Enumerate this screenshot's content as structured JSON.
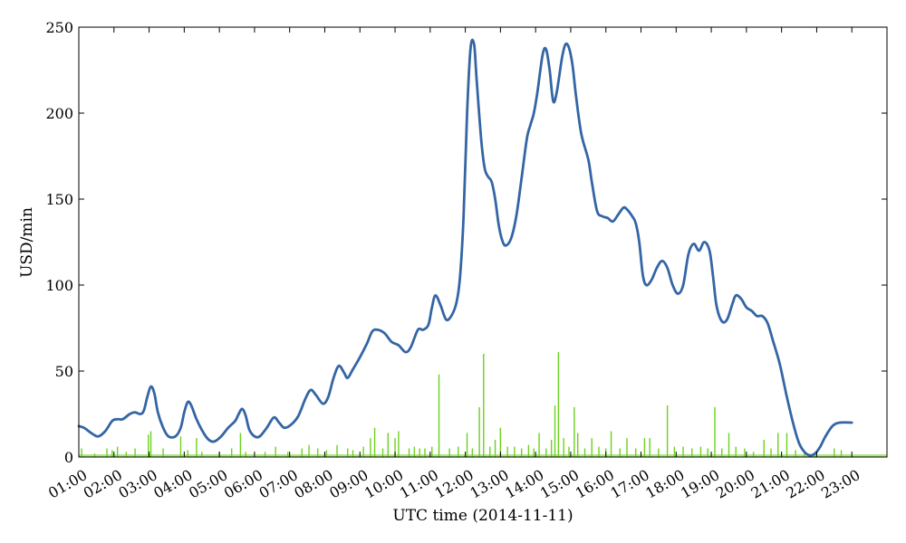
{
  "chart_data": {
    "type": "line",
    "xlabel": "UTC time (2014-11-11)",
    "ylabel": "USD/min",
    "ylim": [
      0,
      250
    ],
    "yticks": [
      0,
      50,
      100,
      150,
      200,
      250
    ],
    "xticks": [
      "01:00",
      "02:00",
      "03:00",
      "04:00",
      "05:00",
      "06:00",
      "07:00",
      "08:00",
      "09:00",
      "10:00",
      "11:00",
      "12:00",
      "13:00",
      "14:00",
      "15:00",
      "16:00",
      "17:00",
      "18:00",
      "19:00",
      "20:00",
      "21:00",
      "22:00",
      "23:00"
    ],
    "xlim_hours": [
      1.0,
      24.0
    ],
    "grid": false,
    "series": [
      {
        "style": "smooth-line",
        "color": "#3465a4",
        "points": [
          [
            1.0,
            18
          ],
          [
            1.15,
            17
          ],
          [
            1.35,
            14
          ],
          [
            1.55,
            12
          ],
          [
            1.75,
            15
          ],
          [
            1.95,
            21
          ],
          [
            2.1,
            22
          ],
          [
            2.25,
            22
          ],
          [
            2.45,
            25
          ],
          [
            2.6,
            26
          ],
          [
            2.75,
            25
          ],
          [
            2.85,
            27
          ],
          [
            2.95,
            35
          ],
          [
            3.05,
            41
          ],
          [
            3.15,
            37
          ],
          [
            3.25,
            26
          ],
          [
            3.4,
            17
          ],
          [
            3.55,
            12
          ],
          [
            3.75,
            12
          ],
          [
            3.9,
            17
          ],
          [
            4.0,
            26
          ],
          [
            4.1,
            32
          ],
          [
            4.2,
            30
          ],
          [
            4.35,
            22
          ],
          [
            4.55,
            14
          ],
          [
            4.7,
            10
          ],
          [
            4.85,
            9
          ],
          [
            5.05,
            12
          ],
          [
            5.25,
            17
          ],
          [
            5.45,
            21
          ],
          [
            5.55,
            25
          ],
          [
            5.65,
            28
          ],
          [
            5.75,
            24
          ],
          [
            5.85,
            16
          ],
          [
            6.0,
            12
          ],
          [
            6.15,
            12
          ],
          [
            6.35,
            17
          ],
          [
            6.55,
            23
          ],
          [
            6.7,
            20
          ],
          [
            6.85,
            17
          ],
          [
            7.05,
            19
          ],
          [
            7.25,
            24
          ],
          [
            7.45,
            34
          ],
          [
            7.6,
            39
          ],
          [
            7.75,
            36
          ],
          [
            7.95,
            31
          ],
          [
            8.1,
            35
          ],
          [
            8.25,
            46
          ],
          [
            8.4,
            53
          ],
          [
            8.55,
            49
          ],
          [
            8.65,
            46
          ],
          [
            8.8,
            51
          ],
          [
            9.0,
            58
          ],
          [
            9.2,
            66
          ],
          [
            9.35,
            73
          ],
          [
            9.5,
            74
          ],
          [
            9.7,
            72
          ],
          [
            9.9,
            67
          ],
          [
            10.1,
            65
          ],
          [
            10.3,
            61
          ],
          [
            10.45,
            64
          ],
          [
            10.65,
            74
          ],
          [
            10.8,
            74
          ],
          [
            10.95,
            77
          ],
          [
            11.05,
            87
          ],
          [
            11.15,
            94
          ],
          [
            11.3,
            88
          ],
          [
            11.45,
            80
          ],
          [
            11.6,
            82
          ],
          [
            11.75,
            90
          ],
          [
            11.85,
            105
          ],
          [
            11.95,
            140
          ],
          [
            12.05,
            200
          ],
          [
            12.15,
            238
          ],
          [
            12.25,
            240
          ],
          [
            12.32,
            220
          ],
          [
            12.45,
            185
          ],
          [
            12.55,
            168
          ],
          [
            12.65,
            163
          ],
          [
            12.75,
            160
          ],
          [
            12.85,
            150
          ],
          [
            12.95,
            135
          ],
          [
            13.05,
            126
          ],
          [
            13.15,
            123
          ],
          [
            13.3,
            127
          ],
          [
            13.45,
            140
          ],
          [
            13.6,
            162
          ],
          [
            13.75,
            185
          ],
          [
            13.85,
            193
          ],
          [
            13.95,
            200
          ],
          [
            14.05,
            212
          ],
          [
            14.2,
            234
          ],
          [
            14.3,
            237
          ],
          [
            14.4,
            225
          ],
          [
            14.5,
            207
          ],
          [
            14.6,
            212
          ],
          [
            14.75,
            232
          ],
          [
            14.85,
            240
          ],
          [
            14.95,
            238
          ],
          [
            15.05,
            228
          ],
          [
            15.15,
            210
          ],
          [
            15.3,
            188
          ],
          [
            15.5,
            173
          ],
          [
            15.6,
            160
          ],
          [
            15.75,
            143
          ],
          [
            15.9,
            140
          ],
          [
            16.05,
            139
          ],
          [
            16.2,
            137
          ],
          [
            16.35,
            141
          ],
          [
            16.5,
            145
          ],
          [
            16.6,
            144
          ],
          [
            16.75,
            140
          ],
          [
            16.85,
            136
          ],
          [
            16.95,
            125
          ],
          [
            17.05,
            106
          ],
          [
            17.15,
            100
          ],
          [
            17.3,
            103
          ],
          [
            17.45,
            110
          ],
          [
            17.6,
            114
          ],
          [
            17.75,
            110
          ],
          [
            17.9,
            100
          ],
          [
            18.05,
            95
          ],
          [
            18.2,
            100
          ],
          [
            18.35,
            118
          ],
          [
            18.5,
            124
          ],
          [
            18.65,
            120
          ],
          [
            18.8,
            125
          ],
          [
            18.95,
            120
          ],
          [
            19.05,
            105
          ],
          [
            19.15,
            88
          ],
          [
            19.3,
            79
          ],
          [
            19.45,
            80
          ],
          [
            19.6,
            89
          ],
          [
            19.7,
            94
          ],
          [
            19.85,
            92
          ],
          [
            20.0,
            87
          ],
          [
            20.15,
            85
          ],
          [
            20.3,
            82
          ],
          [
            20.45,
            82
          ],
          [
            20.6,
            78
          ],
          [
            20.75,
            68
          ],
          [
            20.95,
            54
          ],
          [
            21.15,
            35
          ],
          [
            21.35,
            18
          ],
          [
            21.5,
            8
          ],
          [
            21.65,
            3
          ],
          [
            21.8,
            1
          ],
          [
            21.95,
            2
          ],
          [
            22.1,
            6
          ],
          [
            22.25,
            12
          ],
          [
            22.45,
            18
          ],
          [
            22.65,
            20
          ],
          [
            23.0,
            20
          ]
        ]
      },
      {
        "style": "bars",
        "color": "#6bd11f",
        "bars": [
          [
            1.08,
            5
          ],
          [
            1.45,
            2
          ],
          [
            1.8,
            5
          ],
          [
            1.95,
            4
          ],
          [
            2.1,
            6
          ],
          [
            2.35,
            3
          ],
          [
            2.6,
            5
          ],
          [
            2.98,
            13
          ],
          [
            3.05,
            15
          ],
          [
            3.4,
            5
          ],
          [
            3.9,
            12
          ],
          [
            4.1,
            4
          ],
          [
            4.35,
            11
          ],
          [
            4.5,
            3
          ],
          [
            5.0,
            3
          ],
          [
            5.35,
            5
          ],
          [
            5.6,
            14
          ],
          [
            5.75,
            3
          ],
          [
            6.3,
            3
          ],
          [
            6.6,
            6
          ],
          [
            6.95,
            3
          ],
          [
            7.35,
            5
          ],
          [
            7.55,
            7
          ],
          [
            7.8,
            5
          ],
          [
            8.05,
            4
          ],
          [
            8.35,
            7
          ],
          [
            8.65,
            5
          ],
          [
            8.8,
            4
          ],
          [
            9.1,
            6
          ],
          [
            9.3,
            11
          ],
          [
            9.42,
            17
          ],
          [
            9.65,
            5
          ],
          [
            9.8,
            14
          ],
          [
            10.0,
            11
          ],
          [
            10.1,
            15
          ],
          [
            10.4,
            5
          ],
          [
            10.55,
            6
          ],
          [
            10.7,
            5
          ],
          [
            10.85,
            5
          ],
          [
            11.05,
            6
          ],
          [
            11.25,
            48
          ],
          [
            11.55,
            5
          ],
          [
            11.8,
            6
          ],
          [
            12.05,
            14
          ],
          [
            12.2,
            5
          ],
          [
            12.4,
            29
          ],
          [
            12.52,
            60
          ],
          [
            12.7,
            6
          ],
          [
            12.85,
            10
          ],
          [
            13.0,
            17
          ],
          [
            13.2,
            6
          ],
          [
            13.4,
            6
          ],
          [
            13.6,
            5
          ],
          [
            13.8,
            7
          ],
          [
            13.95,
            5
          ],
          [
            14.1,
            14
          ],
          [
            14.3,
            5
          ],
          [
            14.45,
            10
          ],
          [
            14.55,
            30
          ],
          [
            14.65,
            61
          ],
          [
            14.8,
            11
          ],
          [
            14.95,
            6
          ],
          [
            15.1,
            29
          ],
          [
            15.2,
            14
          ],
          [
            15.4,
            5
          ],
          [
            15.6,
            11
          ],
          [
            15.8,
            6
          ],
          [
            16.0,
            5
          ],
          [
            16.15,
            15
          ],
          [
            16.4,
            5
          ],
          [
            16.6,
            11
          ],
          [
            16.85,
            5
          ],
          [
            17.1,
            11
          ],
          [
            17.25,
            11
          ],
          [
            17.5,
            5
          ],
          [
            17.75,
            30
          ],
          [
            17.95,
            6
          ],
          [
            18.2,
            6
          ],
          [
            18.45,
            5
          ],
          [
            18.7,
            6
          ],
          [
            18.9,
            5
          ],
          [
            19.1,
            29
          ],
          [
            19.3,
            5
          ],
          [
            19.5,
            14
          ],
          [
            19.7,
            6
          ],
          [
            19.95,
            5
          ],
          [
            20.2,
            3
          ],
          [
            20.5,
            10
          ],
          [
            20.7,
            5
          ],
          [
            20.9,
            14
          ],
          [
            21.15,
            14
          ],
          [
            21.4,
            4
          ],
          [
            21.65,
            3
          ],
          [
            21.95,
            2
          ],
          [
            22.5,
            5
          ],
          [
            22.7,
            4
          ]
        ]
      }
    ]
  }
}
